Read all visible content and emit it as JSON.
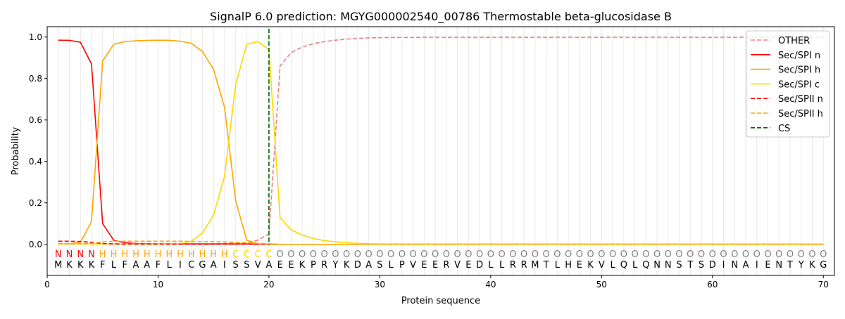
{
  "chart_data": {
    "type": "line",
    "title": "SignalP 6.0 prediction: MGYG000002540_00786 Thermostable beta-glucosidase B",
    "xlabel": "Protein sequence",
    "ylabel": "Probability",
    "xlim": [
      0,
      71
    ],
    "ylim": [
      -0.15,
      1.05
    ],
    "xticks": [
      0,
      10,
      20,
      30,
      40,
      50,
      60,
      70
    ],
    "yticks": [
      0.0,
      0.2,
      0.4,
      0.6,
      0.8,
      1.0
    ],
    "ytick_labels": [
      "0.0",
      "0.2",
      "0.4",
      "0.6",
      "0.8",
      "1.0"
    ],
    "legend_position": "top-right",
    "sequence": [
      "M",
      "K",
      "K",
      "K",
      "F",
      "L",
      "F",
      "A",
      "A",
      "F",
      "L",
      "I",
      "C",
      "G",
      "A",
      "I",
      "S",
      "S",
      "V",
      "A",
      "E",
      "E",
      "K",
      "P",
      "R",
      "Y",
      "K",
      "D",
      "A",
      "S",
      "L",
      "P",
      "V",
      "E",
      "E",
      "R",
      "V",
      "E",
      "D",
      "L",
      "L",
      "R",
      "R",
      "M",
      "T",
      "L",
      "H",
      "E",
      "K",
      "V",
      "L",
      "Q",
      "L",
      "Q",
      "N",
      "N",
      "S",
      "T",
      "S",
      "D",
      "I",
      "N",
      "A",
      "I",
      "E",
      "N",
      "T",
      "Y",
      "K",
      "G"
    ],
    "labels": [
      "N",
      "N",
      "N",
      "N",
      "H",
      "H",
      "H",
      "H",
      "H",
      "H",
      "H",
      "H",
      "H",
      "H",
      "H",
      "H",
      "C",
      "C",
      "C",
      "C",
      "O",
      "O",
      "O",
      "O",
      "O",
      "O",
      "O",
      "O",
      "O",
      "O",
      "O",
      "O",
      "O",
      "O",
      "O",
      "O",
      "O",
      "O",
      "O",
      "O",
      "O",
      "O",
      "O",
      "O",
      "O",
      "O",
      "O",
      "O",
      "O",
      "O",
      "O",
      "O",
      "O",
      "O",
      "O",
      "O",
      "O",
      "O",
      "O",
      "O",
      "O",
      "O",
      "O",
      "O",
      "O",
      "O",
      "O",
      "O",
      "O",
      "O"
    ],
    "label_colors": {
      "N": "#ff0000",
      "H": "#ffa500",
      "C": "#ffd700",
      "O": "#808080"
    },
    "cs_position": 20,
    "cs_label": "CS",
    "cs_color": "#006400",
    "series": [
      {
        "name": "OTHER",
        "color": "#f08080",
        "dash": true,
        "values": [
          0.003,
          0.003,
          0.003,
          0.003,
          0.003,
          0.003,
          0.003,
          0.003,
          0.003,
          0.003,
          0.003,
          0.003,
          0.003,
          0.003,
          0.003,
          0.004,
          0.005,
          0.008,
          0.02,
          0.05,
          0.86,
          0.925,
          0.952,
          0.968,
          0.978,
          0.985,
          0.99,
          0.994,
          0.996,
          0.997,
          0.998,
          0.998,
          0.998,
          0.999,
          0.999,
          0.999,
          0.999,
          0.999,
          0.999,
          0.999,
          0.999,
          0.999,
          0.999,
          0.999,
          0.999,
          0.999,
          0.999,
          0.999,
          0.999,
          0.999,
          0.999,
          0.999,
          0.999,
          0.999,
          0.999,
          0.999,
          0.999,
          0.999,
          0.999,
          0.999,
          0.999,
          0.999,
          0.999,
          0.999,
          0.999,
          0.999,
          0.999,
          0.999,
          0.999,
          0.999
        ]
      },
      {
        "name": "Sec/SPI n",
        "color": "#ff0000",
        "dash": false,
        "values": [
          0.985,
          0.984,
          0.975,
          0.87,
          0.1,
          0.02,
          0.008,
          0.004,
          0.003,
          0.002,
          0.002,
          0.002,
          0.002,
          0.002,
          0.002,
          0.002,
          0.002,
          0.002,
          0.001,
          0.001,
          0,
          0,
          0,
          0,
          0,
          0,
          0,
          0,
          0,
          0,
          0,
          0,
          0,
          0,
          0,
          0,
          0,
          0,
          0,
          0,
          0,
          0,
          0,
          0,
          0,
          0,
          0,
          0,
          0,
          0,
          0,
          0,
          0,
          0,
          0,
          0,
          0,
          0,
          0,
          0,
          0,
          0,
          0,
          0,
          0,
          0,
          0,
          0,
          0,
          0
        ]
      },
      {
        "name": "Sec/SPI h",
        "color": "#ffa500",
        "dash": false,
        "values": [
          0.002,
          0.003,
          0.01,
          0.11,
          0.885,
          0.965,
          0.978,
          0.982,
          0.984,
          0.985,
          0.984,
          0.98,
          0.97,
          0.93,
          0.845,
          0.66,
          0.21,
          0.02,
          0.003,
          0.001,
          0,
          0,
          0,
          0,
          0,
          0,
          0,
          0,
          0,
          0,
          0,
          0,
          0,
          0,
          0,
          0,
          0,
          0,
          0,
          0,
          0,
          0,
          0,
          0,
          0,
          0,
          0,
          0,
          0,
          0,
          0,
          0,
          0,
          0,
          0,
          0,
          0,
          0,
          0,
          0,
          0,
          0,
          0,
          0,
          0,
          0,
          0,
          0,
          0,
          0
        ]
      },
      {
        "name": "Sec/SPI c",
        "color": "#ffd700",
        "dash": false,
        "values": [
          0.002,
          0.002,
          0.002,
          0.002,
          0.002,
          0.002,
          0.002,
          0.002,
          0.002,
          0.002,
          0.002,
          0.003,
          0.015,
          0.055,
          0.14,
          0.33,
          0.77,
          0.965,
          0.978,
          0.94,
          0.13,
          0.07,
          0.045,
          0.028,
          0.018,
          0.012,
          0.008,
          0.005,
          0.003,
          0.002,
          0.002,
          0.002,
          0.002,
          0.002,
          0.002,
          0.002,
          0.002,
          0.002,
          0.002,
          0.002,
          0.002,
          0.002,
          0.002,
          0.002,
          0.002,
          0.002,
          0.002,
          0.002,
          0.002,
          0.002,
          0.002,
          0.002,
          0.002,
          0.002,
          0.002,
          0.002,
          0.002,
          0.002,
          0.002,
          0.002,
          0.002,
          0.002,
          0.002,
          0.002,
          0.002,
          0.002,
          0.002,
          0.002,
          0.002,
          0.002
        ]
      },
      {
        "name": "Sec/SPII n",
        "color": "#ff0000",
        "dash": true,
        "values": [
          0.015,
          0.015,
          0.014,
          0.01,
          0.004,
          0.002,
          0.001,
          0.001,
          0.001,
          0.001,
          0.001,
          0.001,
          0.001,
          0.001,
          0.001,
          0.001,
          0.001,
          0.001,
          0.001,
          0,
          0,
          0,
          0,
          0,
          0,
          0,
          0,
          0,
          0,
          0,
          0,
          0,
          0,
          0,
          0,
          0,
          0,
          0,
          0,
          0,
          0,
          0,
          0,
          0,
          0,
          0,
          0,
          0,
          0,
          0,
          0,
          0,
          0,
          0,
          0,
          0,
          0,
          0,
          0,
          0,
          0,
          0,
          0,
          0,
          0,
          0,
          0,
          0,
          0,
          0
        ]
      },
      {
        "name": "Sec/SPII h",
        "color": "#ffa500",
        "dash": true,
        "values": [
          0.002,
          0.002,
          0.003,
          0.005,
          0.012,
          0.015,
          0.015,
          0.015,
          0.015,
          0.015,
          0.015,
          0.015,
          0.014,
          0.014,
          0.013,
          0.012,
          0.01,
          0.008,
          0.005,
          0.002,
          0,
          0,
          0,
          0,
          0,
          0,
          0,
          0,
          0,
          0,
          0,
          0,
          0,
          0,
          0,
          0,
          0,
          0,
          0,
          0,
          0,
          0,
          0,
          0,
          0,
          0,
          0,
          0,
          0,
          0,
          0,
          0,
          0,
          0,
          0,
          0,
          0,
          0,
          0,
          0,
          0,
          0,
          0,
          0,
          0,
          0,
          0,
          0,
          0,
          0
        ]
      }
    ]
  }
}
